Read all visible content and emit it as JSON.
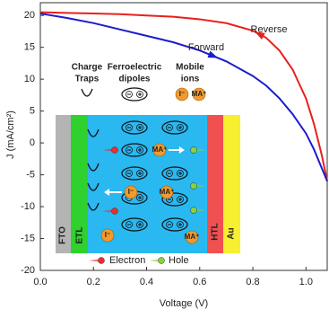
{
  "chart_data": {
    "type": "line",
    "x_label": "Voltage (V)",
    "y_label": "J (mA/cm²)",
    "x": [
      0,
      0.1,
      0.2,
      0.3,
      0.4,
      0.5,
      0.6,
      0.7,
      0.8,
      0.85,
      0.9,
      0.95,
      1.0,
      1.03,
      1.06,
      1.08
    ],
    "series": [
      {
        "name": "Reverse",
        "color": "#e8201c",
        "values": [
          20.5,
          20.4,
          20.3,
          20.2,
          20.0,
          19.8,
          19.4,
          18.8,
          17.6,
          16.5,
          14.5,
          11.5,
          7,
          3,
          -2,
          -6
        ]
      },
      {
        "name": "Forward",
        "color": "#1c1ccc",
        "values": [
          20.3,
          19.6,
          18.8,
          17.8,
          16.8,
          15.8,
          14.5,
          12.8,
          10.5,
          9,
          7,
          4.5,
          1.5,
          -1,
          -4,
          -6
        ]
      }
    ],
    "xlim": [
      0,
      1.08
    ],
    "ylim": [
      -20,
      22
    ],
    "xticks": [
      {
        "value": 0,
        "label": "0.0"
      },
      {
        "value": 0.2,
        "label": "0.2"
      },
      {
        "value": 0.4,
        "label": "0.4"
      },
      {
        "value": 0.6,
        "label": "0.6"
      },
      {
        "value": 0.8,
        "label": "0.8"
      },
      {
        "value": 1.0,
        "label": "1.0"
      }
    ],
    "yticks": [
      -20,
      -15,
      -10,
      -5,
      0,
      5,
      10,
      15,
      20
    ]
  },
  "inset": {
    "layers": [
      "FTO",
      "ETL",
      "HTL",
      "Au"
    ],
    "headers": [
      [
        "Charge",
        "Traps"
      ],
      [
        "Ferroelectric",
        "dipoles"
      ],
      [
        "Mobile",
        "ions"
      ]
    ],
    "ions": [
      "I⁻",
      "MA⁺"
    ],
    "legend": [
      "Electron",
      "Hole"
    ]
  }
}
